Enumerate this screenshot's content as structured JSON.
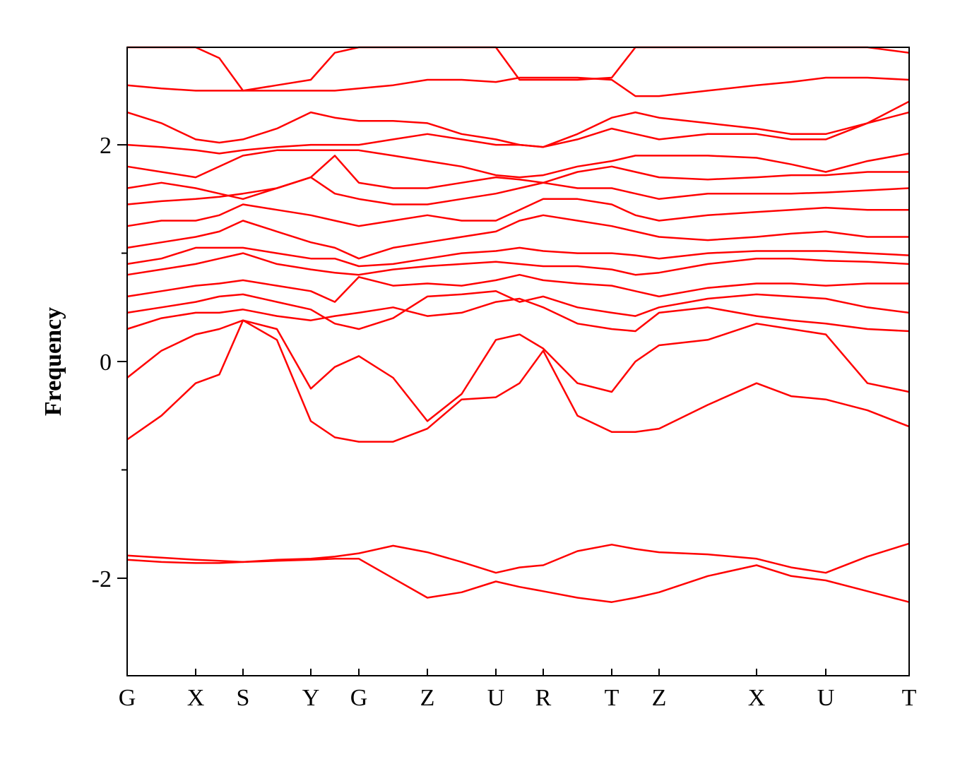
{
  "chart_data": {
    "type": "line",
    "y_label": "Frequency",
    "color": "#ff0000",
    "x": [
      0,
      0.485,
      0.97,
      1.305,
      1.64,
      2.12,
      2.6,
      2.94,
      3.28,
      3.765,
      4.25,
      4.735,
      5.22,
      5.555,
      5.89,
      6.375,
      6.86,
      7.195,
      7.53,
      8.22,
      8.91,
      9.4,
      9.89,
      10.48,
      11.07
    ],
    "xlim": [
      0,
      11.07
    ],
    "xticks": [
      {
        "value": 0,
        "label": "G"
      },
      {
        "value": 0.97,
        "label": "X"
      },
      {
        "value": 1.64,
        "label": "S"
      },
      {
        "value": 2.6,
        "label": "Y"
      },
      {
        "value": 3.28,
        "label": "G"
      },
      {
        "value": 4.25,
        "label": "Z"
      },
      {
        "value": 5.22,
        "label": "U"
      },
      {
        "value": 5.89,
        "label": "R"
      },
      {
        "value": 6.86,
        "label": "T"
      },
      {
        "value": 7.53,
        "label": "Z"
      },
      {
        "value": 8.91,
        "label": "X"
      },
      {
        "value": 9.89,
        "label": "U"
      },
      {
        "value": 11.07,
        "label": "T"
      }
    ],
    "ylim": [
      -2.9,
      2.9
    ],
    "yticks": [
      -2,
      0,
      2
    ],
    "yticks_minor": [
      -1,
      1
    ],
    "series": [
      {
        "values": [
          -1.83,
          -1.85,
          -1.86,
          -1.86,
          -1.85,
          -1.84,
          -1.83,
          -1.82,
          -1.82,
          -2.0,
          -2.18,
          -2.13,
          -2.03,
          -2.08,
          -2.12,
          -2.18,
          -2.22,
          -2.18,
          -2.13,
          -1.98,
          -1.88,
          -1.98,
          -2.02,
          -2.12,
          -2.22
        ]
      },
      {
        "values": [
          -1.79,
          -1.81,
          -1.83,
          -1.84,
          -1.85,
          -1.83,
          -1.82,
          -1.8,
          -1.77,
          -1.7,
          -1.76,
          -1.85,
          -1.95,
          -1.9,
          -1.88,
          -1.75,
          -1.69,
          -1.73,
          -1.76,
          -1.78,
          -1.82,
          -1.9,
          -1.95,
          -1.8,
          -1.68
        ]
      },
      {
        "values": [
          -0.72,
          -0.5,
          -0.2,
          -0.12,
          0.38,
          0.2,
          -0.55,
          -0.7,
          -0.74,
          -0.74,
          -0.62,
          -0.35,
          -0.33,
          -0.2,
          0.1,
          -0.5,
          -0.65,
          -0.65,
          -0.62,
          -0.4,
          -0.2,
          -0.32,
          -0.35,
          -0.45,
          -0.6
        ]
      },
      {
        "values": [
          -0.15,
          0.1,
          0.25,
          0.3,
          0.38,
          0.3,
          -0.25,
          -0.05,
          0.05,
          -0.15,
          -0.55,
          -0.3,
          0.2,
          0.25,
          0.12,
          -0.2,
          -0.28,
          0.0,
          0.15,
          0.2,
          0.35,
          0.3,
          0.25,
          -0.2,
          -0.28
        ]
      },
      {
        "values": [
          0.3,
          0.4,
          0.45,
          0.45,
          0.48,
          0.42,
          0.38,
          0.42,
          0.45,
          0.5,
          0.42,
          0.45,
          0.55,
          0.58,
          0.5,
          0.35,
          0.3,
          0.28,
          0.45,
          0.5,
          0.42,
          0.38,
          0.35,
          0.3,
          0.28
        ]
      },
      {
        "values": [
          0.45,
          0.5,
          0.55,
          0.6,
          0.62,
          0.55,
          0.48,
          0.35,
          0.3,
          0.4,
          0.6,
          0.62,
          0.65,
          0.55,
          0.6,
          0.5,
          0.45,
          0.42,
          0.5,
          0.58,
          0.62,
          0.6,
          0.58,
          0.5,
          0.45
        ]
      },
      {
        "values": [
          0.6,
          0.65,
          0.7,
          0.72,
          0.75,
          0.7,
          0.65,
          0.55,
          0.78,
          0.7,
          0.72,
          0.7,
          0.75,
          0.8,
          0.75,
          0.72,
          0.7,
          0.65,
          0.6,
          0.68,
          0.72,
          0.72,
          0.7,
          0.72,
          0.72
        ]
      },
      {
        "values": [
          0.8,
          0.85,
          0.9,
          0.95,
          1.0,
          0.9,
          0.85,
          0.82,
          0.8,
          0.85,
          0.88,
          0.9,
          0.92,
          0.9,
          0.88,
          0.88,
          0.85,
          0.8,
          0.82,
          0.9,
          0.95,
          0.95,
          0.93,
          0.92,
          0.9
        ]
      },
      {
        "values": [
          0.9,
          0.95,
          1.05,
          1.05,
          1.05,
          1.0,
          0.95,
          0.95,
          0.88,
          0.9,
          0.95,
          1.0,
          1.02,
          1.05,
          1.02,
          1.0,
          1.0,
          0.98,
          0.95,
          1.0,
          1.02,
          1.02,
          1.02,
          1.0,
          0.98
        ]
      },
      {
        "values": [
          1.05,
          1.1,
          1.15,
          1.2,
          1.3,
          1.2,
          1.1,
          1.05,
          0.95,
          1.05,
          1.1,
          1.15,
          1.2,
          1.3,
          1.35,
          1.3,
          1.25,
          1.2,
          1.15,
          1.12,
          1.15,
          1.18,
          1.2,
          1.15,
          1.15
        ]
      },
      {
        "values": [
          1.25,
          1.3,
          1.3,
          1.35,
          1.45,
          1.4,
          1.35,
          1.3,
          1.25,
          1.3,
          1.35,
          1.3,
          1.3,
          1.4,
          1.5,
          1.5,
          1.45,
          1.35,
          1.3,
          1.35,
          1.38,
          1.4,
          1.42,
          1.4,
          1.4
        ]
      },
      {
        "values": [
          1.45,
          1.48,
          1.5,
          1.52,
          1.55,
          1.6,
          1.7,
          1.55,
          1.5,
          1.45,
          1.45,
          1.5,
          1.55,
          1.6,
          1.65,
          1.6,
          1.6,
          1.55,
          1.5,
          1.55,
          1.55,
          1.55,
          1.56,
          1.58,
          1.6
        ]
      },
      {
        "values": [
          1.6,
          1.65,
          1.6,
          1.55,
          1.5,
          1.6,
          1.7,
          1.9,
          1.65,
          1.6,
          1.6,
          1.65,
          1.7,
          1.68,
          1.65,
          1.75,
          1.8,
          1.75,
          1.7,
          1.68,
          1.7,
          1.72,
          1.72,
          1.75,
          1.75
        ]
      },
      {
        "values": [
          1.8,
          1.75,
          1.7,
          1.8,
          1.9,
          1.95,
          1.95,
          1.95,
          1.95,
          1.9,
          1.85,
          1.8,
          1.72,
          1.7,
          1.72,
          1.8,
          1.85,
          1.9,
          1.9,
          1.9,
          1.88,
          1.82,
          1.75,
          1.85,
          1.92
        ]
      },
      {
        "values": [
          2.0,
          1.98,
          1.95,
          1.92,
          1.95,
          1.98,
          2.0,
          2.0,
          2.0,
          2.05,
          2.1,
          2.05,
          2.0,
          2.0,
          1.98,
          2.05,
          2.15,
          2.1,
          2.05,
          2.1,
          2.1,
          2.05,
          2.05,
          2.2,
          2.3
        ]
      },
      {
        "values": [
          2.3,
          2.2,
          2.05,
          2.02,
          2.05,
          2.15,
          2.3,
          2.25,
          2.22,
          2.22,
          2.2,
          2.1,
          2.05,
          2.0,
          1.98,
          2.1,
          2.25,
          2.3,
          2.25,
          2.2,
          2.15,
          2.1,
          2.1,
          2.2,
          2.4
        ]
      },
      {
        "values": [
          2.55,
          2.52,
          2.5,
          2.5,
          2.5,
          2.5,
          2.5,
          2.5,
          2.52,
          2.55,
          2.6,
          2.6,
          2.58,
          2.62,
          2.62,
          2.62,
          2.6,
          2.45,
          2.45,
          2.5,
          2.55,
          2.58,
          2.62,
          2.62,
          2.6
        ]
      },
      {
        "values": [
          2.9,
          2.9,
          2.9,
          2.8,
          2.5,
          2.55,
          2.6,
          2.85,
          2.9,
          2.9,
          2.9,
          2.9,
          2.9,
          2.6,
          2.6,
          2.6,
          2.62,
          2.9,
          2.9,
          2.9,
          2.9,
          2.9,
          2.9,
          2.9,
          2.85
        ]
      }
    ]
  }
}
